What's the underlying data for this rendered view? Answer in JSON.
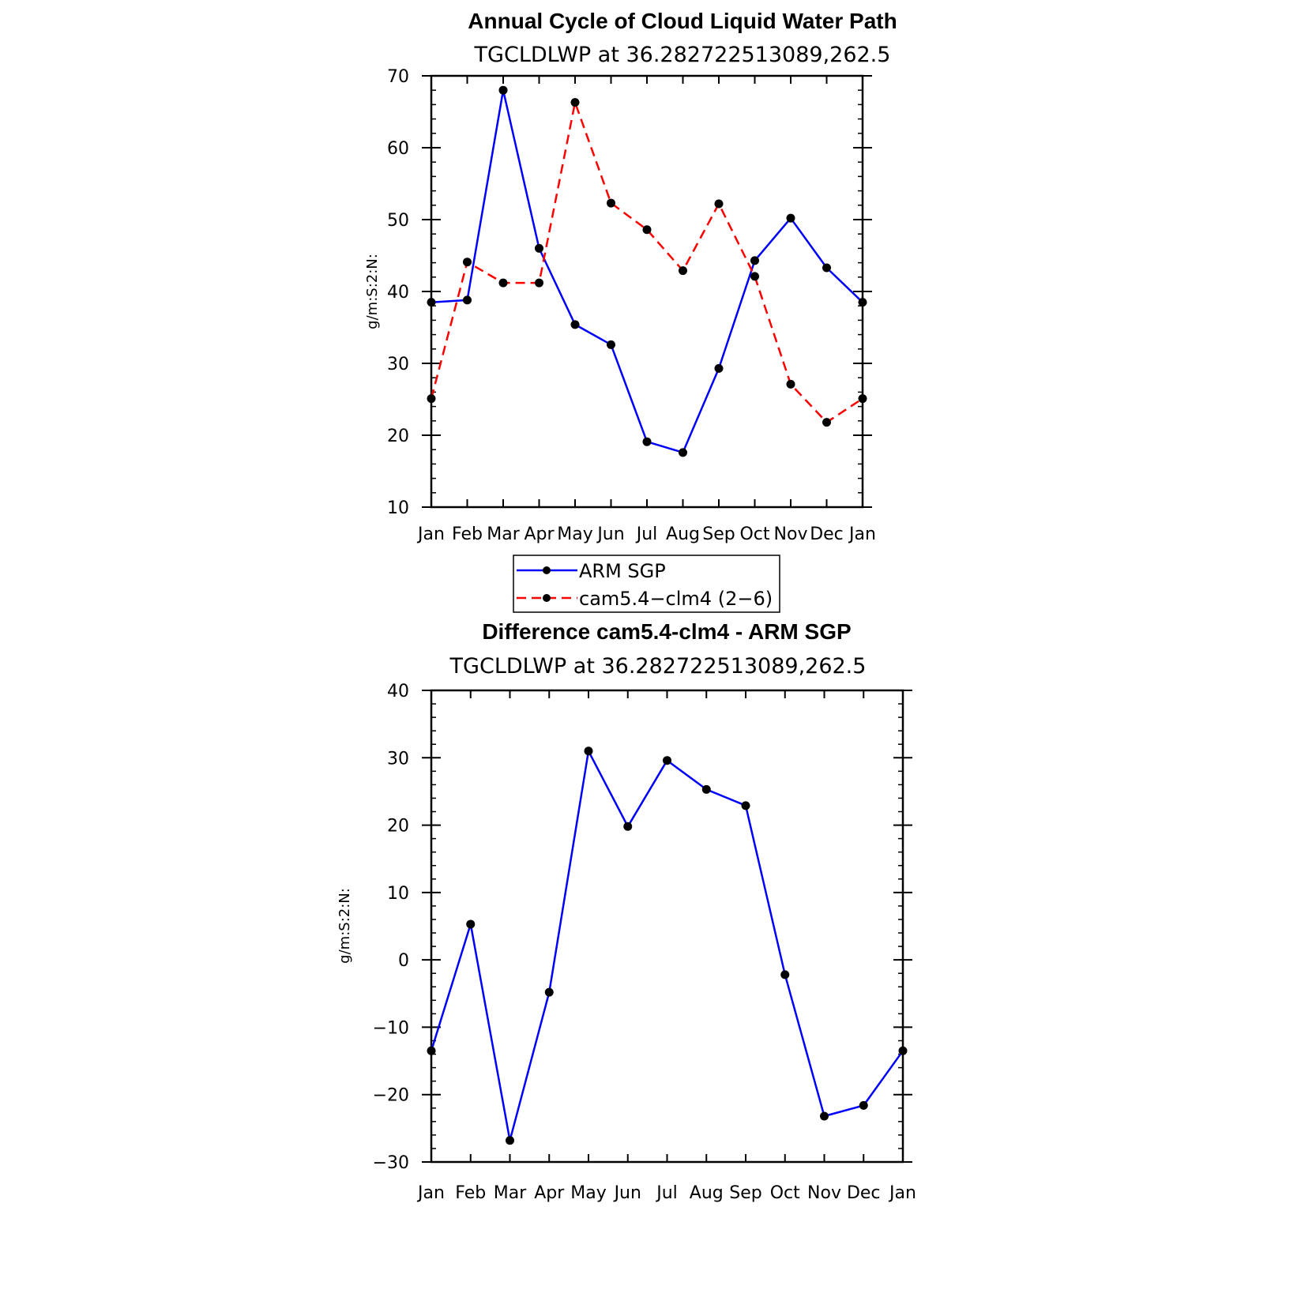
{
  "colors": {
    "arm": "#0000ff",
    "model": "#ff0000",
    "marker": "#000000",
    "axis": "#000000",
    "background": "#ffffff"
  },
  "legend": {
    "items": [
      {
        "label": "ARM SGP",
        "color": "#0000ff",
        "style": "solid"
      },
      {
        "label": "cam5.4−clm4 (2−6)",
        "color": "#ff0000",
        "style": "dashed"
      }
    ]
  },
  "chart_data": [
    {
      "type": "line",
      "title": "Annual Cycle of Cloud Liquid Water Path",
      "subtitle": "TGCLDLWP at 36.282722513089,262.5",
      "xlabel": "",
      "ylabel": "g/m:S:2:N:",
      "categories": [
        "Jan",
        "Feb",
        "Mar",
        "Apr",
        "May",
        "Jun",
        "Jul",
        "Aug",
        "Sep",
        "Oct",
        "Nov",
        "Dec",
        "Jan"
      ],
      "ylim": [
        10,
        70
      ],
      "yticks": [
        10,
        20,
        30,
        40,
        50,
        60,
        70
      ],
      "yticks_minor_step": 2,
      "grid": false,
      "series": [
        {
          "name": "ARM SGP",
          "color": "#0000ff",
          "style": "solid",
          "values": [
            38.5,
            38.8,
            68.0,
            46.0,
            35.4,
            32.6,
            19.1,
            17.6,
            29.3,
            44.3,
            50.2,
            43.3,
            38.5
          ]
        },
        {
          "name": "cam5.4−clm4 (2−6)",
          "color": "#ff0000",
          "style": "dashed",
          "values": [
            25.1,
            44.1,
            41.2,
            41.2,
            66.3,
            52.3,
            48.6,
            42.9,
            52.2,
            42.1,
            27.1,
            21.8,
            25.1
          ]
        }
      ]
    },
    {
      "type": "line",
      "title": "Difference cam5.4-clm4 - ARM SGP",
      "subtitle": "TGCLDLWP at 36.282722513089,262.5",
      "xlabel": "",
      "ylabel": "g/m:S:2:N:",
      "categories": [
        "Jan",
        "Feb",
        "Mar",
        "Apr",
        "May",
        "Jun",
        "Jul",
        "Aug",
        "Sep",
        "Oct",
        "Nov",
        "Dec",
        "Jan"
      ],
      "ylim": [
        -30,
        40
      ],
      "yticks": [
        -30,
        -20,
        -10,
        0,
        10,
        20,
        30,
        40
      ],
      "ytick_labels": [
        "−30",
        "−20",
        "−10",
        "0",
        "10",
        "20",
        "30",
        "40"
      ],
      "yticks_minor_step": 2,
      "grid": false,
      "series": [
        {
          "name": "",
          "color": "#0000ff",
          "style": "solid",
          "values": [
            -13.5,
            5.3,
            -26.8,
            -4.8,
            31.0,
            19.8,
            29.6,
            25.3,
            22.9,
            -2.2,
            -23.2,
            -21.6,
            -13.5
          ]
        }
      ]
    }
  ]
}
